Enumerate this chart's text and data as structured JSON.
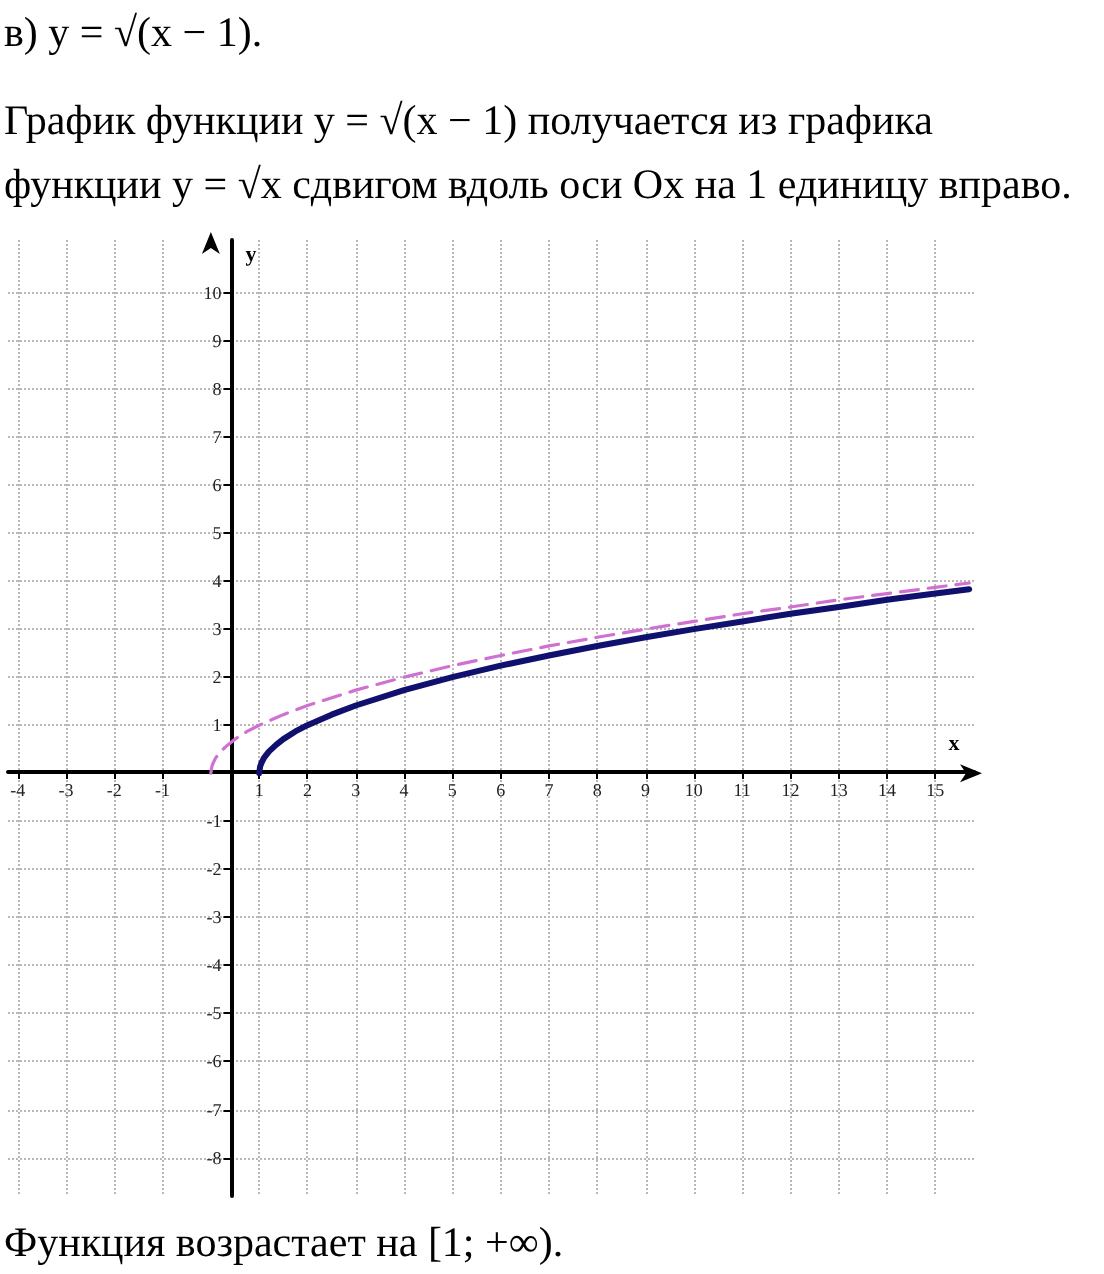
{
  "chart_data": {
    "type": "line",
    "title": "в) y = √(x − 1).",
    "subtitle": "График функции y = √(x − 1) получается из графика функции y = √x сдвигом вдоль оси Ox на 1 единицу вправо.",
    "annotations": [
      "Функция возрастает на [1; +∞)."
    ],
    "xlabel": "x",
    "ylabel": "y",
    "xlim": [
      -4.2,
      15.8
    ],
    "ylim": [
      -8.8,
      11.1
    ],
    "xticks": [
      -4,
      -3,
      -2,
      -1,
      1,
      2,
      3,
      4,
      5,
      6,
      7,
      8,
      9,
      10,
      11,
      12,
      13,
      14,
      15
    ],
    "yticks": [
      -8,
      -7,
      -6,
      -5,
      -4,
      -3,
      -2,
      -1,
      1,
      2,
      3,
      4,
      5,
      6,
      7,
      8,
      9,
      10
    ],
    "grid": true,
    "series": [
      {
        "color": "#d070d0",
        "line_style": "dashed",
        "x": [
          0,
          0.02,
          0.05,
          0.1,
          0.2,
          0.35,
          0.5,
          0.75,
          1,
          1.5,
          2,
          3,
          4,
          5,
          6,
          7,
          8,
          9,
          10,
          11,
          12,
          13,
          14,
          15,
          15.7
        ],
        "values": [
          0,
          0.14,
          0.22,
          0.32,
          0.45,
          0.59,
          0.71,
          0.87,
          1,
          1.22,
          1.41,
          1.73,
          2,
          2.24,
          2.45,
          2.65,
          2.83,
          3,
          3.16,
          3.32,
          3.46,
          3.61,
          3.74,
          3.87,
          3.96
        ]
      },
      {
        "color": "#10106e",
        "line_style": "solid",
        "x": [
          1,
          1.02,
          1.05,
          1.1,
          1.2,
          1.35,
          1.5,
          1.75,
          2,
          2.5,
          3,
          4,
          5,
          6,
          7,
          8,
          9,
          10,
          11,
          12,
          13,
          14,
          15,
          15.7
        ],
        "values": [
          0,
          0.14,
          0.22,
          0.32,
          0.45,
          0.59,
          0.71,
          0.87,
          1,
          1.22,
          1.41,
          1.73,
          2,
          2.24,
          2.45,
          2.65,
          2.83,
          3,
          3.16,
          3.32,
          3.46,
          3.61,
          3.74,
          3.83
        ]
      }
    ]
  }
}
